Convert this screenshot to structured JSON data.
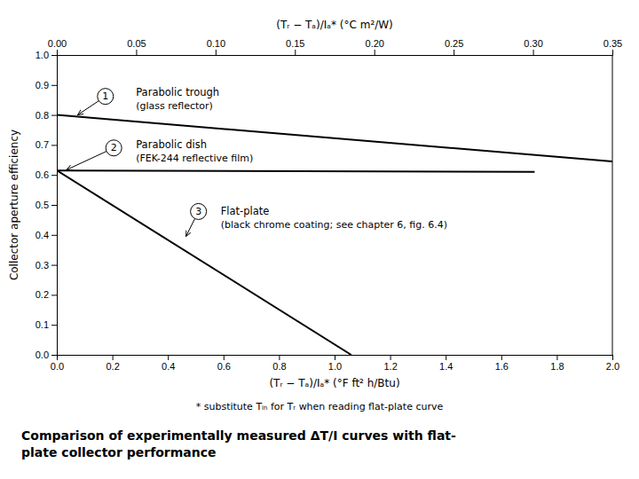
{
  "chart_data": {
    "type": "line",
    "title": "Comparison of experimentally measured ΔT/I curves with flat-\nplate collector performance",
    "xlabel": "(Tᵣ − Tₐ)/Iₐ* (°F ft² h/Btu)",
    "x2label": "(Tᵣ − Tₐ)/Iₐ* (°C m²/W)",
    "ylabel": "Collector aperture efficiency",
    "footnote": "* substitute Tᵢₙ for Tᵣ when reading flat-plate curve",
    "xlim": [
      0.0,
      2.0
    ],
    "xticks": [
      {
        "value": 0.0,
        "label": "0.0"
      },
      0.2,
      0.4,
      0.6,
      0.8,
      {
        "value": 1.0,
        "label": "1.0"
      },
      1.2,
      1.4,
      1.6,
      1.8,
      {
        "value": 2.0,
        "label": "2.0"
      }
    ],
    "x2lim": [
      0.0,
      0.35
    ],
    "x2ticks": [
      {
        "value": 0.0,
        "label": "0.00"
      },
      0.05,
      {
        "value": 0.1,
        "label": "0.10"
      },
      0.15,
      {
        "value": 0.2,
        "label": "0.20"
      },
      0.25,
      {
        "value": 0.3,
        "label": "0.30"
      },
      0.35
    ],
    "ylim": [
      0.0,
      1.0
    ],
    "yticks": [
      {
        "value": 0.0,
        "label": "0.0"
      },
      0.1,
      0.2,
      0.3,
      0.4,
      0.5,
      0.6,
      0.7,
      0.8,
      0.9,
      {
        "value": 1.0,
        "label": "1.0"
      }
    ],
    "grid": false,
    "series": [
      {
        "x": [
          0.0,
          2.0
        ],
        "values": [
          0.8,
          0.645
        ],
        "color": "#000000"
      },
      {
        "x": [
          0.0,
          1.72
        ],
        "values": [
          0.615,
          0.61
        ],
        "color": "#000000"
      },
      {
        "x": [
          0.0,
          1.06
        ],
        "values": [
          0.615,
          0.0
        ],
        "color": "#000000"
      }
    ],
    "annotations": [
      {
        "label": "1",
        "x": 0.175,
        "y": 0.862,
        "arrow_xy": [
          0.075,
          0.8
        ],
        "text_x": 0.285,
        "lines": [
          {
            "text": "Parabolic trough",
            "y": 0.875
          },
          {
            "text": "(glass reflector)",
            "y": 0.83
          }
        ]
      },
      {
        "label": "2",
        "x": 0.205,
        "y": 0.69,
        "arrow_xy": [
          0.035,
          0.617
        ],
        "text_x": 0.285,
        "lines": [
          {
            "text": "Parabolic dish",
            "y": 0.7
          },
          {
            "text": "(FEK-244 reflective film)",
            "y": 0.655
          }
        ]
      },
      {
        "label": "3",
        "x": 0.51,
        "y": 0.478,
        "arrow_xy": [
          0.465,
          0.395
        ],
        "text_x": 0.59,
        "lines": [
          {
            "text": "Flat-plate",
            "y": 0.48
          },
          {
            "text": "(black chrome coating; see chapter 6, fig. 6.4)",
            "y": 0.432
          }
        ]
      }
    ]
  }
}
